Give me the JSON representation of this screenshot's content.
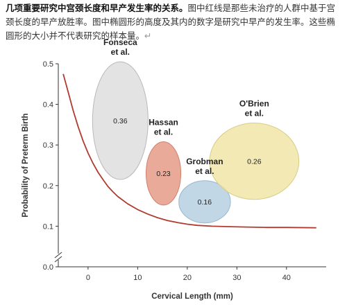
{
  "caption": {
    "bold": "几项重要研究中宫颈长度和早产发生率的关系。",
    "rest": "图中红线是那些未治疗的人群中基于宫颈长度的早产放胜率。图中椭圆形的高度及其内的数字是研究中早产的发生率。这些椭圆形的大小并不代表研究的样本量。",
    "mark": "↵"
  },
  "chart_data": {
    "type": "scatter",
    "title": "",
    "xlabel": "Cervical Length (mm)",
    "ylabel": "Probability of Preterm Birth",
    "xlim": [
      -6,
      48
    ],
    "ylim": [
      0.0,
      0.5
    ],
    "xticks": [
      "0",
      "10",
      "20",
      "30",
      "40"
    ],
    "xtick_values": [
      0,
      10,
      20,
      30,
      40
    ],
    "yticks": [
      "0.0",
      "0.1",
      "0.2",
      "0.3",
      "0.4",
      "0.5"
    ],
    "ytick_values": [
      0.0,
      0.1,
      0.2,
      0.3,
      0.4,
      0.5
    ],
    "y_axis_break": true,
    "studies": [
      {
        "name": [
          "Fonseca",
          "et al."
        ],
        "x": 6.5,
        "y": 0.36,
        "label": "0.36",
        "color": "#dcdcdc",
        "stroke": "#b8b8b8"
      },
      {
        "name": [
          "Hassan",
          "et al."
        ],
        "x": 15.2,
        "y": 0.23,
        "label": "0.23",
        "color": "#e59580",
        "stroke": "#cf7f6c"
      },
      {
        "name": [
          "Grobman",
          "et al."
        ],
        "x": 23.5,
        "y": 0.16,
        "label": "0.16",
        "color": "#b3cde0",
        "stroke": "#96b7cf"
      },
      {
        "name": [
          "O'Brien",
          "et al."
        ],
        "x": 33.5,
        "y": 0.26,
        "label": "0.26",
        "color": "#efe4a3",
        "stroke": "#d9cc84"
      }
    ],
    "risk_curve": {
      "color": "#b03a2e",
      "x": [
        -5,
        -4,
        -3,
        -2,
        -1,
        0,
        1,
        2,
        3,
        4,
        5,
        6,
        8,
        10,
        12,
        14,
        16,
        18,
        20,
        22,
        25,
        28,
        32,
        36,
        40,
        46
      ],
      "y": [
        0.475,
        0.43,
        0.385,
        0.345,
        0.31,
        0.28,
        0.255,
        0.233,
        0.215,
        0.198,
        0.185,
        0.173,
        0.155,
        0.141,
        0.13,
        0.121,
        0.114,
        0.109,
        0.105,
        0.102,
        0.1,
        0.099,
        0.098,
        0.097,
        0.097,
        0.096
      ]
    }
  }
}
